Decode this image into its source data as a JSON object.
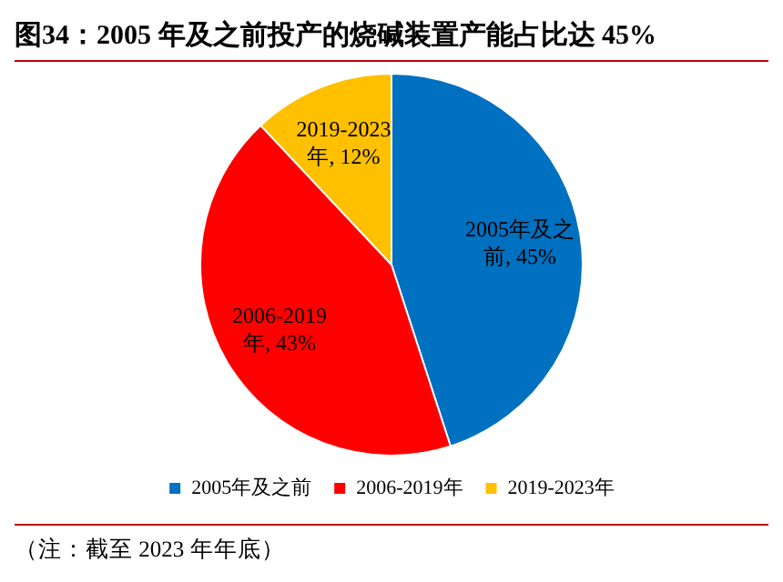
{
  "chart_data": {
    "type": "pie",
    "title": "图34：2005 年及之前投产的烧碱装置产能占比达 45%",
    "categories": [
      "2005年及之前",
      "2006-2019年",
      "2019-2023年"
    ],
    "values": [
      45,
      43,
      12
    ],
    "colors": [
      "#0070c0",
      "#ff0000",
      "#ffc000"
    ],
    "value_labels": [
      "2005年及之前, 45%",
      "2006-2019年, 43%",
      "2019-2023年, 12%"
    ],
    "legend": "bottom",
    "annotations": [
      "（注：截至 2023 年年底）"
    ]
  }
}
